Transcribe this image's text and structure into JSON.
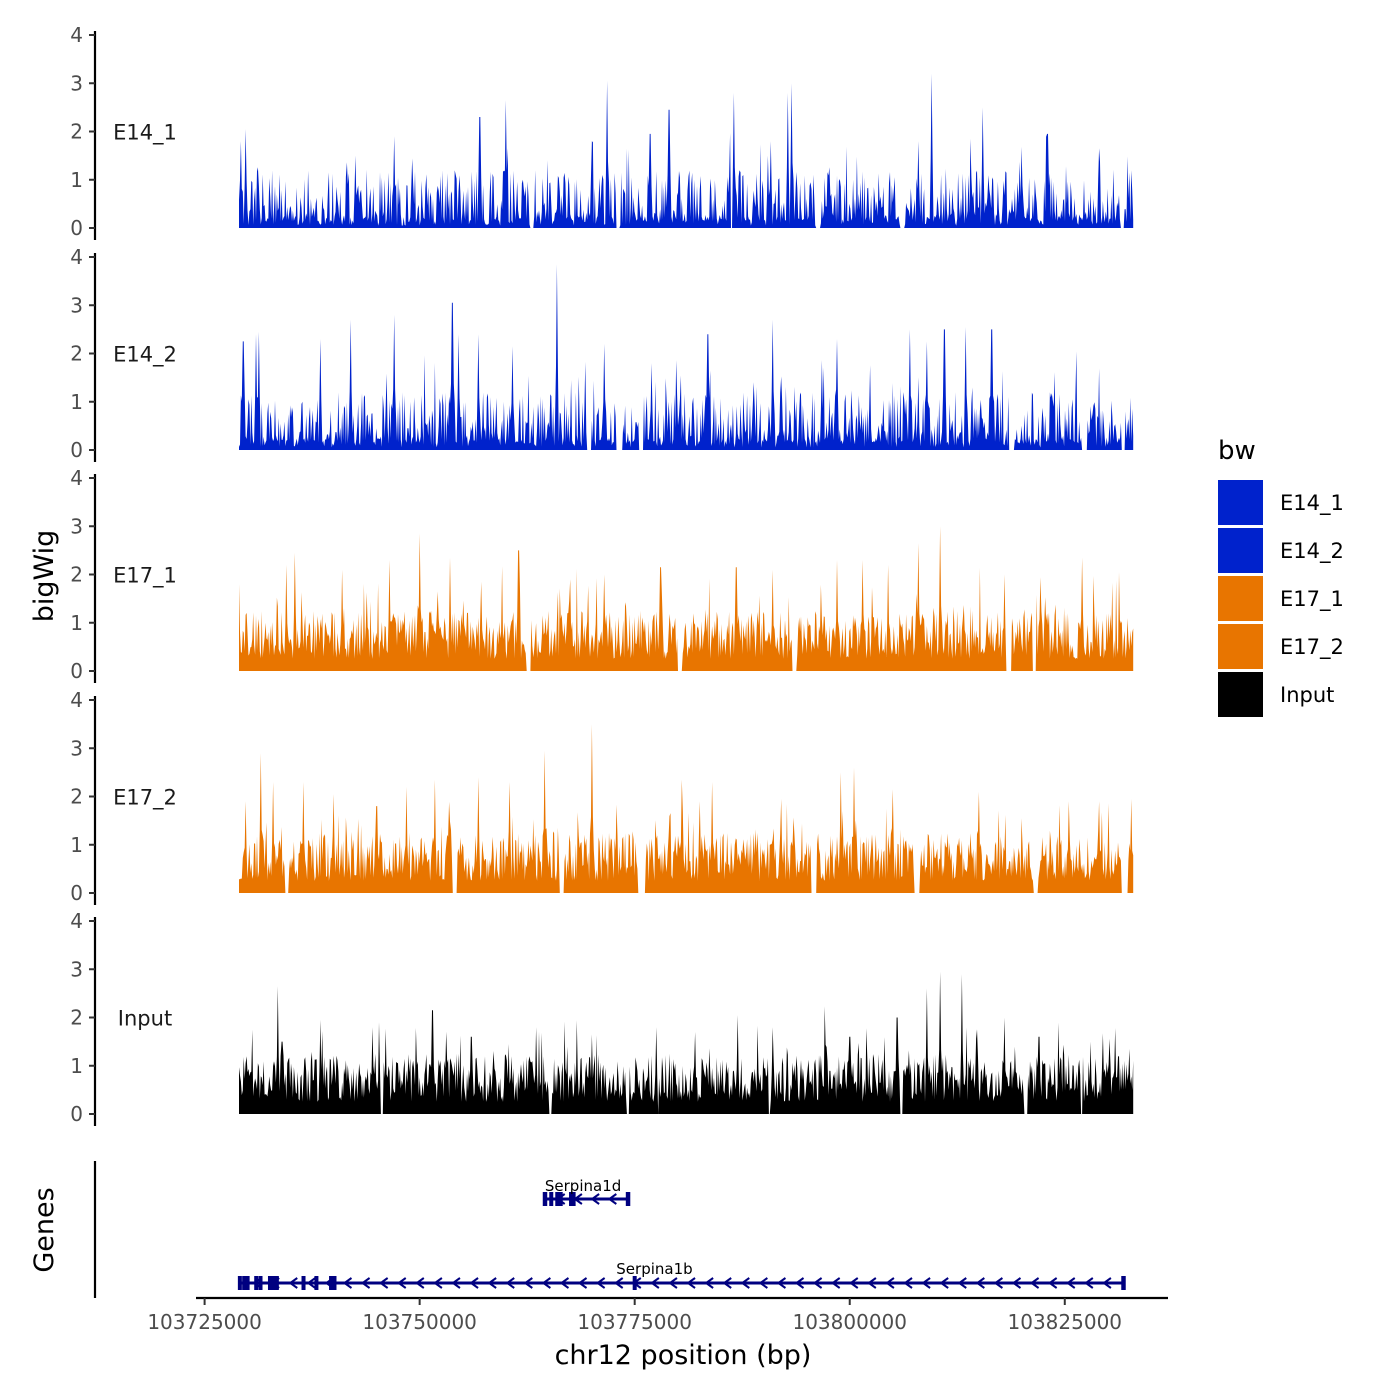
{
  "chart_data": {
    "type": "area",
    "title": "",
    "xlabel": "chr12 position (bp)",
    "ylabel": "bigWig",
    "genes_label": "Genes",
    "xlim": [
      103724000,
      103837000
    ],
    "x_ticks": [
      103725000,
      103750000,
      103775000,
      103800000,
      103825000
    ],
    "x_tick_labels": [
      "103725000",
      "103750000",
      "103775000",
      "103800000",
      "103825000"
    ],
    "ylim": [
      0,
      4
    ],
    "y_ticks": [
      0,
      1,
      2,
      3,
      4
    ],
    "y_tick_labels": [
      "0",
      "1",
      "2",
      "3",
      "4"
    ],
    "data_range": [
      103729000,
      103833000
    ],
    "legend": {
      "title": "bw",
      "placement": "right",
      "entries": [
        {
          "label": "E14_1",
          "color": "#0022CC"
        },
        {
          "label": "E14_2",
          "color": "#0022CC"
        },
        {
          "label": "E17_1",
          "color": "#E87500"
        },
        {
          "label": "E17_2",
          "color": "#E87500"
        },
        {
          "label": "Input",
          "color": "#000000"
        }
      ]
    },
    "series": [
      {
        "name": "E14_1",
        "color": "#0022CC",
        "seed": 11,
        "peaks": [
          [
            103729200,
            1.8
          ],
          [
            103729800,
            2.05
          ],
          [
            103742500,
            1.5
          ],
          [
            103747000,
            1.9
          ],
          [
            103757000,
            2.3
          ],
          [
            103760000,
            2.65
          ],
          [
            103770000,
            1.8
          ],
          [
            103771800,
            3.05
          ],
          [
            103776800,
            1.95
          ],
          [
            103779000,
            2.45
          ],
          [
            103786500,
            2.8
          ],
          [
            103790500,
            1.5
          ],
          [
            103790800,
            1.8
          ],
          [
            103792800,
            2.8
          ],
          [
            103793200,
            3.0
          ],
          [
            103808000,
            1.8
          ],
          [
            103809500,
            3.2
          ],
          [
            103815500,
            2.5
          ],
          [
            103823000,
            1.95
          ],
          [
            103829000,
            1.65
          ]
        ],
        "gaps": [
          [
            103762800,
            103763300
          ],
          [
            103772800,
            103773300
          ],
          [
            103786100,
            103786500
          ],
          [
            103796000,
            103796600
          ],
          [
            103805800,
            103806400
          ],
          [
            103831500,
            103831900
          ]
        ]
      },
      {
        "name": "E14_2",
        "color": "#0022CC",
        "seed": 23,
        "peaks": [
          [
            103729500,
            2.25
          ],
          [
            103731000,
            2.4
          ],
          [
            103731300,
            2.45
          ],
          [
            103738500,
            2.3
          ],
          [
            103742000,
            2.7
          ],
          [
            103747000,
            2.8
          ],
          [
            103753800,
            3.05
          ],
          [
            103754500,
            2.4
          ],
          [
            103756800,
            2.4
          ],
          [
            103760800,
            2.15
          ],
          [
            103766000,
            3.85
          ],
          [
            103771500,
            2.2
          ],
          [
            103777000,
            1.8
          ],
          [
            103783500,
            2.4
          ],
          [
            103791000,
            2.7
          ],
          [
            103798500,
            2.3
          ],
          [
            103807000,
            2.5
          ],
          [
            103809000,
            2.25
          ],
          [
            103811000,
            2.5
          ],
          [
            103813500,
            2.55
          ],
          [
            103816500,
            2.5
          ]
        ],
        "gaps": [
          [
            103769400,
            103770000
          ],
          [
            103772800,
            103773600
          ],
          [
            103775500,
            103776000
          ],
          [
            103818500,
            103819100
          ],
          [
            103827000,
            103827600
          ],
          [
            103831600,
            103832000
          ]
        ]
      },
      {
        "name": "E17_1",
        "color": "#E87500",
        "seed": 37,
        "peaks": [
          [
            103729000,
            1.8
          ],
          [
            103734500,
            2.2
          ],
          [
            103735500,
            2.45
          ],
          [
            103741000,
            2.1
          ],
          [
            103746500,
            2.3
          ],
          [
            103750000,
            2.85
          ],
          [
            103753500,
            2.35
          ],
          [
            103757200,
            1.85
          ],
          [
            103761500,
            2.5
          ],
          [
            103767500,
            1.9
          ],
          [
            103771500,
            2.0
          ],
          [
            103778000,
            2.15
          ],
          [
            103786800,
            2.15
          ],
          [
            103791000,
            2.1
          ],
          [
            103798500,
            2.3
          ],
          [
            103801500,
            2.3
          ],
          [
            103804500,
            2.2
          ],
          [
            103808000,
            2.65
          ],
          [
            103810500,
            3.0
          ],
          [
            103818000,
            2.0
          ],
          [
            103827000,
            2.35
          ]
        ],
        "gaps": [
          [
            103762400,
            103762900
          ],
          [
            103780000,
            103780500
          ],
          [
            103793300,
            103793800
          ],
          [
            103818000,
            103818800
          ],
          [
            103821200,
            103821700
          ]
        ]
      },
      {
        "name": "E17_2",
        "color": "#E87500",
        "seed": 53,
        "peaks": [
          [
            103729800,
            1.9
          ],
          [
            103731500,
            2.9
          ],
          [
            103733000,
            2.3
          ],
          [
            103736500,
            2.3
          ],
          [
            103740000,
            2.05
          ],
          [
            103745000,
            1.8
          ],
          [
            103748500,
            2.2
          ],
          [
            103751800,
            2.35
          ],
          [
            103756800,
            2.4
          ],
          [
            103760500,
            2.3
          ],
          [
            103764500,
            2.95
          ],
          [
            103770000,
            3.5
          ],
          [
            103780500,
            2.35
          ],
          [
            103784000,
            2.3
          ],
          [
            103792000,
            1.95
          ],
          [
            103799000,
            2.5
          ],
          [
            103800500,
            2.6
          ],
          [
            103805000,
            2.15
          ],
          [
            103815000,
            2.1
          ],
          [
            103825500,
            1.9
          ],
          [
            103829000,
            1.9
          ],
          [
            103832700,
            1.95
          ]
        ],
        "gaps": [
          [
            103734300,
            103734800
          ],
          [
            103753800,
            103754400
          ],
          [
            103766200,
            103766800
          ],
          [
            103775400,
            103776200
          ],
          [
            103795500,
            103796100
          ],
          [
            103807500,
            103808100
          ],
          [
            103821300,
            103821900
          ],
          [
            103831600,
            103832300
          ]
        ]
      },
      {
        "name": "Input",
        "color": "#000000",
        "seed": 71,
        "peaks": [
          [
            103733500,
            2.65
          ],
          [
            103734000,
            1.5
          ],
          [
            103738500,
            1.95
          ],
          [
            103744500,
            1.8
          ],
          [
            103751500,
            2.15
          ],
          [
            103756000,
            1.6
          ],
          [
            103763500,
            1.8
          ],
          [
            103770000,
            1.65
          ],
          [
            103777500,
            1.8
          ],
          [
            103782000,
            1.7
          ],
          [
            103787000,
            2.05
          ],
          [
            103791000,
            1.8
          ],
          [
            103800000,
            1.6
          ],
          [
            103805500,
            2.0
          ],
          [
            103809000,
            2.6
          ],
          [
            103810500,
            2.95
          ],
          [
            103813000,
            2.9
          ],
          [
            103818000,
            2.0
          ],
          [
            103822000,
            1.6
          ],
          [
            103828000,
            1.5
          ],
          [
            103832500,
            1.35
          ]
        ],
        "gaps": [
          [
            103745500,
            103745800
          ],
          [
            103765000,
            103765300
          ],
          [
            103774000,
            103774400
          ],
          [
            103777400,
            103777800
          ],
          [
            103790500,
            103790800
          ],
          [
            103805800,
            103806200
          ],
          [
            103820300,
            103820700
          ],
          [
            103826800,
            103827100
          ]
        ]
      }
    ],
    "genes": [
      {
        "name": "Serpina1d",
        "start": 103764400,
        "end": 103774400,
        "strand": "-",
        "label_x": 103769000,
        "exons": [
          103764600,
          103765300,
          103766000,
          103766400,
          103767600,
          103767900,
          103774200
        ]
      },
      {
        "name": "Serpina1b",
        "start": 103729000,
        "end": 103832000,
        "strand": "-",
        "label_x": 103777300,
        "exons": [
          103729100,
          103729600,
          103730000,
          103731000,
          103731500,
          103732600,
          103733000,
          103733400,
          103736500,
          103738000,
          103739700,
          103740100,
          103775000,
          103831800
        ]
      }
    ]
  }
}
